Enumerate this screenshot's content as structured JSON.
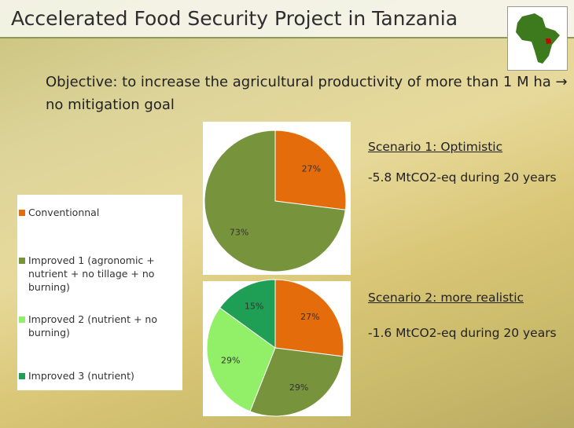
{
  "title": "Accelerated Food Security Project in Tanzania",
  "objective": "Objective: to increase the agricultural productivity of more than 1 M ha → no mitigation goal",
  "legend": [
    {
      "name": "Conventionnal",
      "color": "#e46c0a"
    },
    {
      "name": "Improved 1 (agronomic + nutrient + no tillage + no burning)",
      "color": "#77933c"
    },
    {
      "name": "Improved 2 (nutrient + no burning)",
      "color": "#92f068"
    },
    {
      "name": "Improved 3 (nutrient)",
      "color": "#1f9e55"
    }
  ],
  "chart_data": [
    {
      "type": "pie",
      "title": "Scenario 1: Optimistic",
      "annotation": "-5.8 MtCO2-eq during 20 years",
      "values": [
        27,
        73
      ],
      "value_labels": [
        "27%",
        "73%"
      ],
      "colors": [
        "#e46c0a",
        "#77933c"
      ]
    },
    {
      "type": "pie",
      "title": "Scenario 2: more realistic",
      "annotation": "-1.6 MtCO2-eq during 20 years",
      "values": [
        27,
        29,
        29,
        15
      ],
      "value_labels": [
        "27%",
        "29%",
        "29%",
        "15%"
      ],
      "colors": [
        "#e46c0a",
        "#77933c",
        "#92f068",
        "#1f9e55"
      ]
    }
  ]
}
